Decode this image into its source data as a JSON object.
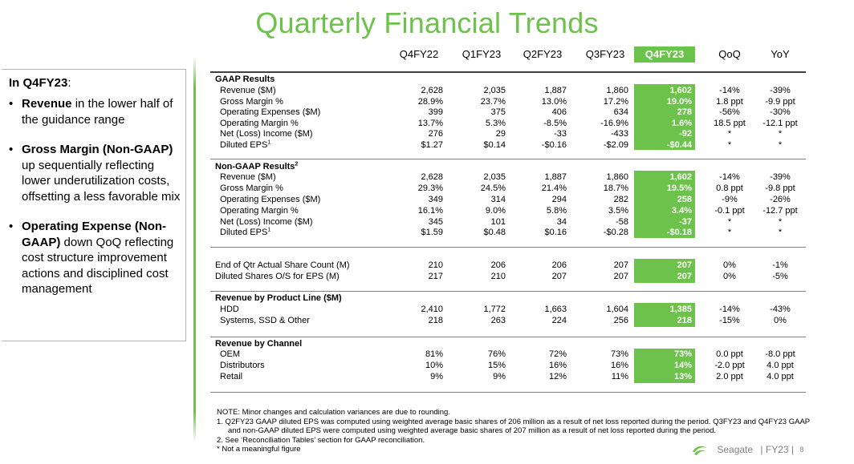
{
  "title": "Quarterly Financial Trends",
  "left": {
    "heading": "In Q4FY23",
    "heading_suffix": ":",
    "bullets": [
      {
        "bold": "Revenue",
        "text": " in the lower half of the guidance range"
      },
      {
        "bold": "Gross Margin (Non-GAAP)",
        "text": " up sequentially reflecting lower underutilization costs, offsetting a less favorable mix"
      },
      {
        "bold": "Operating Expense (Non-GAAP)",
        "text": " down QoQ reflecting cost structure improvement actions and disciplined cost management"
      }
    ]
  },
  "columns": [
    "Q4FY22",
    "Q1FY23",
    "Q2FY23",
    "Q3FY23",
    "Q4FY23",
    "QoQ",
    "YoY"
  ],
  "sections": {
    "gaap": {
      "title": "GAAP Results",
      "rows": [
        {
          "label": "Revenue ($M)",
          "values": [
            "2,628",
            "2,035",
            "1,887",
            "1,860",
            "1,602",
            "-14%",
            "-39%"
          ]
        },
        {
          "label": "Gross Margin %",
          "values": [
            "28.9%",
            "23.7%",
            "13.0%",
            "17.2%",
            "19.0%",
            "1.8 ppt",
            "-9.9 ppt"
          ]
        },
        {
          "label": "Operating Expenses ($M)",
          "values": [
            "399",
            "375",
            "406",
            "634",
            "278",
            "-56%",
            "-30%"
          ]
        },
        {
          "label": "Operating Margin %",
          "values": [
            "13.7%",
            "5.3%",
            "-8.5%",
            "-16.9%",
            "1.6%",
            "18.5 ppt",
            "-12.1 ppt"
          ]
        },
        {
          "label": "Net (Loss) Income ($M)",
          "values": [
            "276",
            "29",
            "-33",
            "-433",
            "-92",
            "*",
            "*"
          ]
        },
        {
          "label": "Diluted EPS",
          "sup": "1",
          "values": [
            "$1.27",
            "$0.14",
            "-$0.16",
            "-$2.09",
            "-$0.44",
            "*",
            "*"
          ]
        }
      ]
    },
    "nongaap": {
      "title": "Non-GAAP Results",
      "sup": "2",
      "rows": [
        {
          "label": "Revenue ($M)",
          "values": [
            "2,628",
            "2,035",
            "1,887",
            "1,860",
            "1,602",
            "-14%",
            "-39%"
          ]
        },
        {
          "label": "Gross Margin %",
          "values": [
            "29.3%",
            "24.5%",
            "21.4%",
            "18.7%",
            "19.5%",
            "0.8 ppt",
            "-9.8 ppt"
          ]
        },
        {
          "label": "Operating Expenses ($M)",
          "values": [
            "349",
            "314",
            "294",
            "282",
            "258",
            "-9%",
            "-26%"
          ]
        },
        {
          "label": "Operating Margin %",
          "values": [
            "16.1%",
            "9.0%",
            "5.8%",
            "3.5%",
            "3.4%",
            "-0.1 ppt",
            "-12.7 ppt"
          ]
        },
        {
          "label": "Net (Loss) Income ($M)",
          "values": [
            "345",
            "101",
            "34",
            "-58",
            "-37",
            "*",
            "*"
          ]
        },
        {
          "label": "Diluted EPS",
          "sup": "1",
          "values": [
            "$1.59",
            "$0.48",
            "$0.16",
            "-$0.28",
            "-$0.18",
            "*",
            "*"
          ]
        }
      ]
    },
    "shares": {
      "rows": [
        {
          "label": "End of Qtr Actual Share Count (M)",
          "values": [
            "210",
            "206",
            "206",
            "207",
            "207",
            "0%",
            "-1%"
          ]
        },
        {
          "label": "Diluted Shares O/S for EPS (M)",
          "values": [
            "217",
            "210",
            "207",
            "207",
            "207",
            "0%",
            "-5%"
          ]
        }
      ]
    },
    "product": {
      "title": "Revenue by Product Line ($M)",
      "rows": [
        {
          "label": "HDD",
          "values": [
            "2,410",
            "1,772",
            "1,663",
            "1,604",
            "1,385",
            "-14%",
            "-43%"
          ]
        },
        {
          "label": "Systems, SSD & Other",
          "values": [
            "218",
            "263",
            "224",
            "256",
            "218",
            "-15%",
            "0%"
          ]
        }
      ]
    },
    "channel": {
      "title": "Revenue by Channel",
      "rows": [
        {
          "label": "OEM",
          "values": [
            "81%",
            "76%",
            "72%",
            "73%",
            "73%",
            "0.0 ppt",
            "-8.0 ppt"
          ]
        },
        {
          "label": "Distributors",
          "values": [
            "10%",
            "15%",
            "16%",
            "16%",
            "14%",
            "-2.0 ppt",
            "4.0 ppt"
          ]
        },
        {
          "label": "Retail",
          "values": [
            "9%",
            "9%",
            "12%",
            "11%",
            "13%",
            "2.0 ppt",
            "4.0 ppt"
          ]
        }
      ]
    }
  },
  "notes": [
    "NOTE: Minor changes and calculation variances are due to rounding.",
    "1.  Q2FY23 GAAP diluted EPS was computed using weighted average basic shares of 206 million as a result of net loss reported during the period. Q3FY23 and Q4FY23 GAAP",
    "and non-GAAP diluted EPS were computed using weighted average basic shares of 207 million as a result of net loss reported during the period.",
    "2.  See ‘Reconciliation Tables’ section for GAAP reconciliation.",
    "* Not a meaningful figure"
  ],
  "footer": {
    "brand": "Seagate",
    "sep1": "| FY23 |",
    "page": "8"
  },
  "colors": {
    "accent": "#6cc24a",
    "rule": "#7f7f7f"
  }
}
